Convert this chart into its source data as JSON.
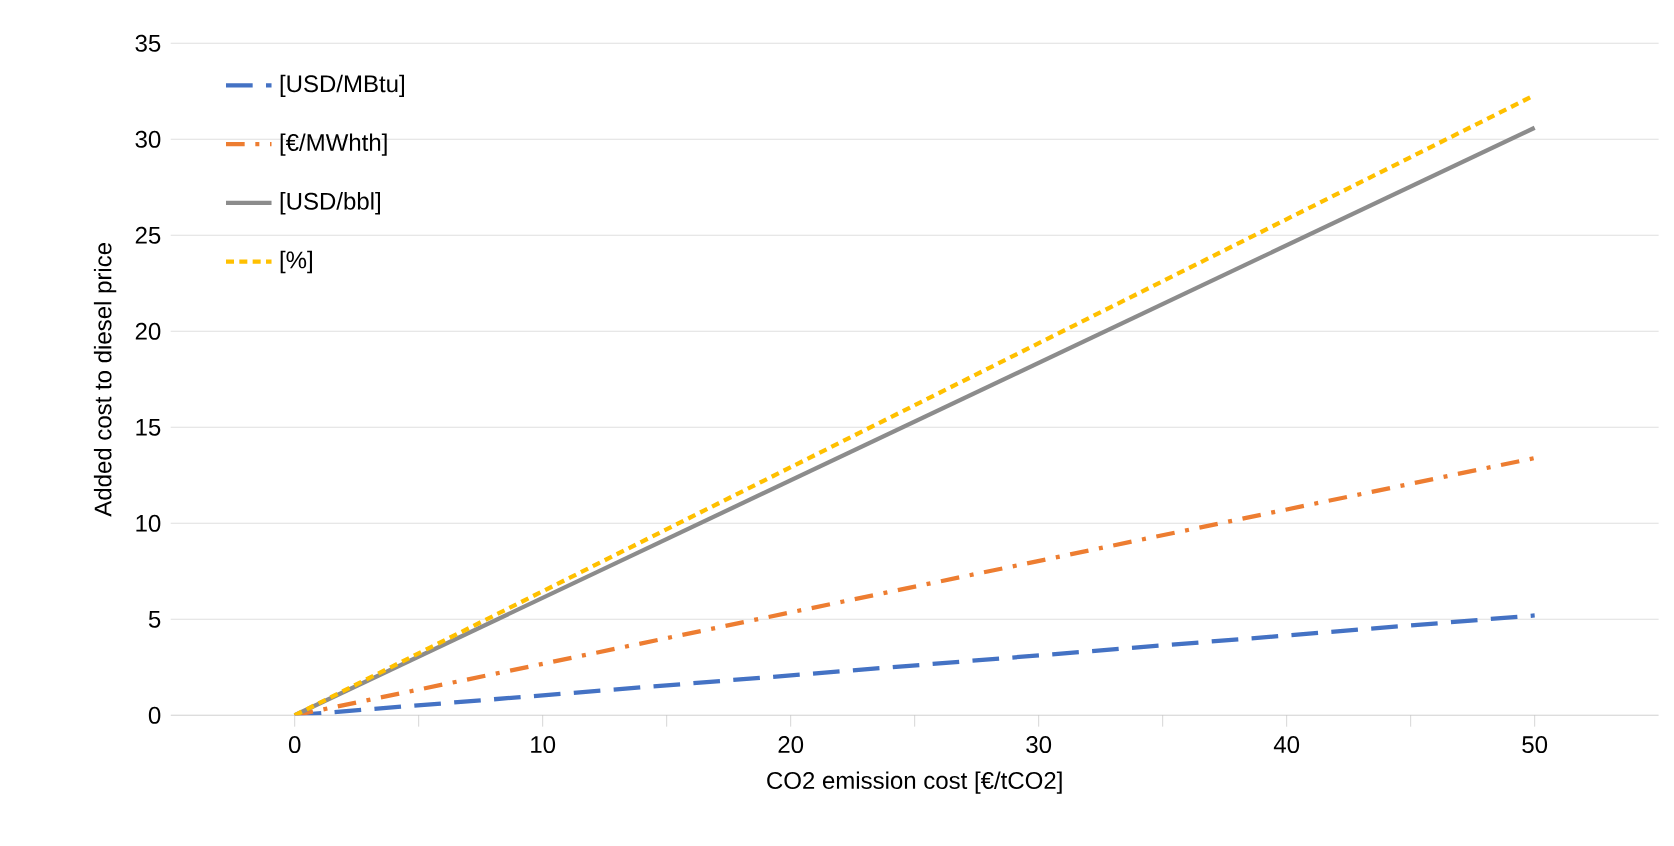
{
  "chart_data": {
    "type": "line",
    "xlabel": "CO2 emission cost [€/tCO2]",
    "ylabel": "Added cost to diesel price",
    "x": [
      0,
      50
    ],
    "series": [
      {
        "name": "[USD/MBtu]",
        "color": "#4472c4",
        "line_style": "dashed",
        "values": [
          0,
          5.2
        ]
      },
      {
        "name": "[€/MWhth]",
        "color": "#ed7d31",
        "line_style": "dashdot",
        "values": [
          0,
          13.4
        ]
      },
      {
        "name": "[USD/bbl]",
        "color": "#8c8c8c",
        "line_style": "solid",
        "values": [
          0,
          30.6
        ]
      },
      {
        "name": "[%]",
        "color": "#ffc000",
        "line_style": "dotted",
        "values": [
          0,
          32.3
        ]
      }
    ],
    "xlim": [
      -5,
      55
    ],
    "ylim": [
      0,
      35
    ],
    "xticks": [
      0,
      {
        "value": 5,
        "label": null
      },
      10,
      {
        "value": 15,
        "label": null
      },
      20,
      {
        "value": 25,
        "label": null
      },
      30,
      {
        "value": 35,
        "label": null
      },
      40,
      {
        "value": 45,
        "label": null
      },
      50
    ],
    "yticks": [
      0,
      5,
      10,
      15,
      20,
      25,
      30,
      35
    ],
    "grid": "y",
    "legend": "top left",
    "marker": "none"
  }
}
